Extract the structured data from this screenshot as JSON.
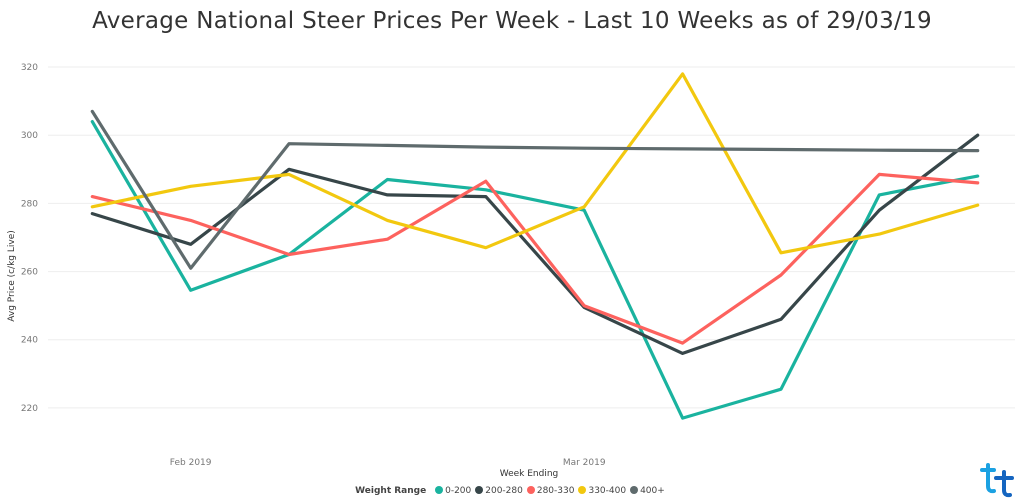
{
  "chart_data": {
    "type": "line",
    "title": "Average National Steer Prices Per Week - Last 10 Weeks as of 29/03/19",
    "xlabel": "Week Ending",
    "ylabel": "Avg Price (c/kg Live)",
    "ylim": [
      210,
      325
    ],
    "yticks": [
      220,
      240,
      260,
      280,
      300,
      320
    ],
    "x": [
      1,
      2,
      3,
      4,
      5,
      6,
      7,
      8,
      9,
      10
    ],
    "xticks": [
      {
        "x": 2,
        "label": "Feb 2019"
      },
      {
        "x": 6,
        "label": "Mar 2019"
      }
    ],
    "xlim": [
      0.55,
      10.45
    ],
    "grid": true,
    "legend": {
      "title": "Weight Range",
      "placement": "bottom-center"
    },
    "series": [
      {
        "name": "0-200",
        "color": "#1AB39F",
        "values": [
          304,
          254.5,
          265,
          287,
          284,
          278,
          217,
          225.5,
          282.5,
          288
        ]
      },
      {
        "name": "200-280",
        "color": "#374649",
        "values": [
          277,
          268,
          290,
          282.5,
          282,
          249.5,
          236,
          246,
          278,
          300
        ]
      },
      {
        "name": "280-330",
        "color": "#FD625E",
        "values": [
          282,
          275,
          265,
          269.5,
          286.5,
          250,
          239,
          259,
          288.5,
          286
        ]
      },
      {
        "name": "330-400",
        "color": "#F2C80F",
        "values": [
          279,
          285,
          288.5,
          275,
          267,
          279,
          318,
          265.5,
          271,
          279.5
        ]
      },
      {
        "name": "400+",
        "color": "#5F6B6D",
        "values": [
          307,
          261,
          297.5,
          297,
          296.5,
          296.2,
          296,
          295.8,
          295.6,
          295.5
        ]
      }
    ]
  },
  "logo": {
    "name": "brand-logo",
    "colors": [
      "#1BA1E2",
      "#1565C0"
    ]
  }
}
